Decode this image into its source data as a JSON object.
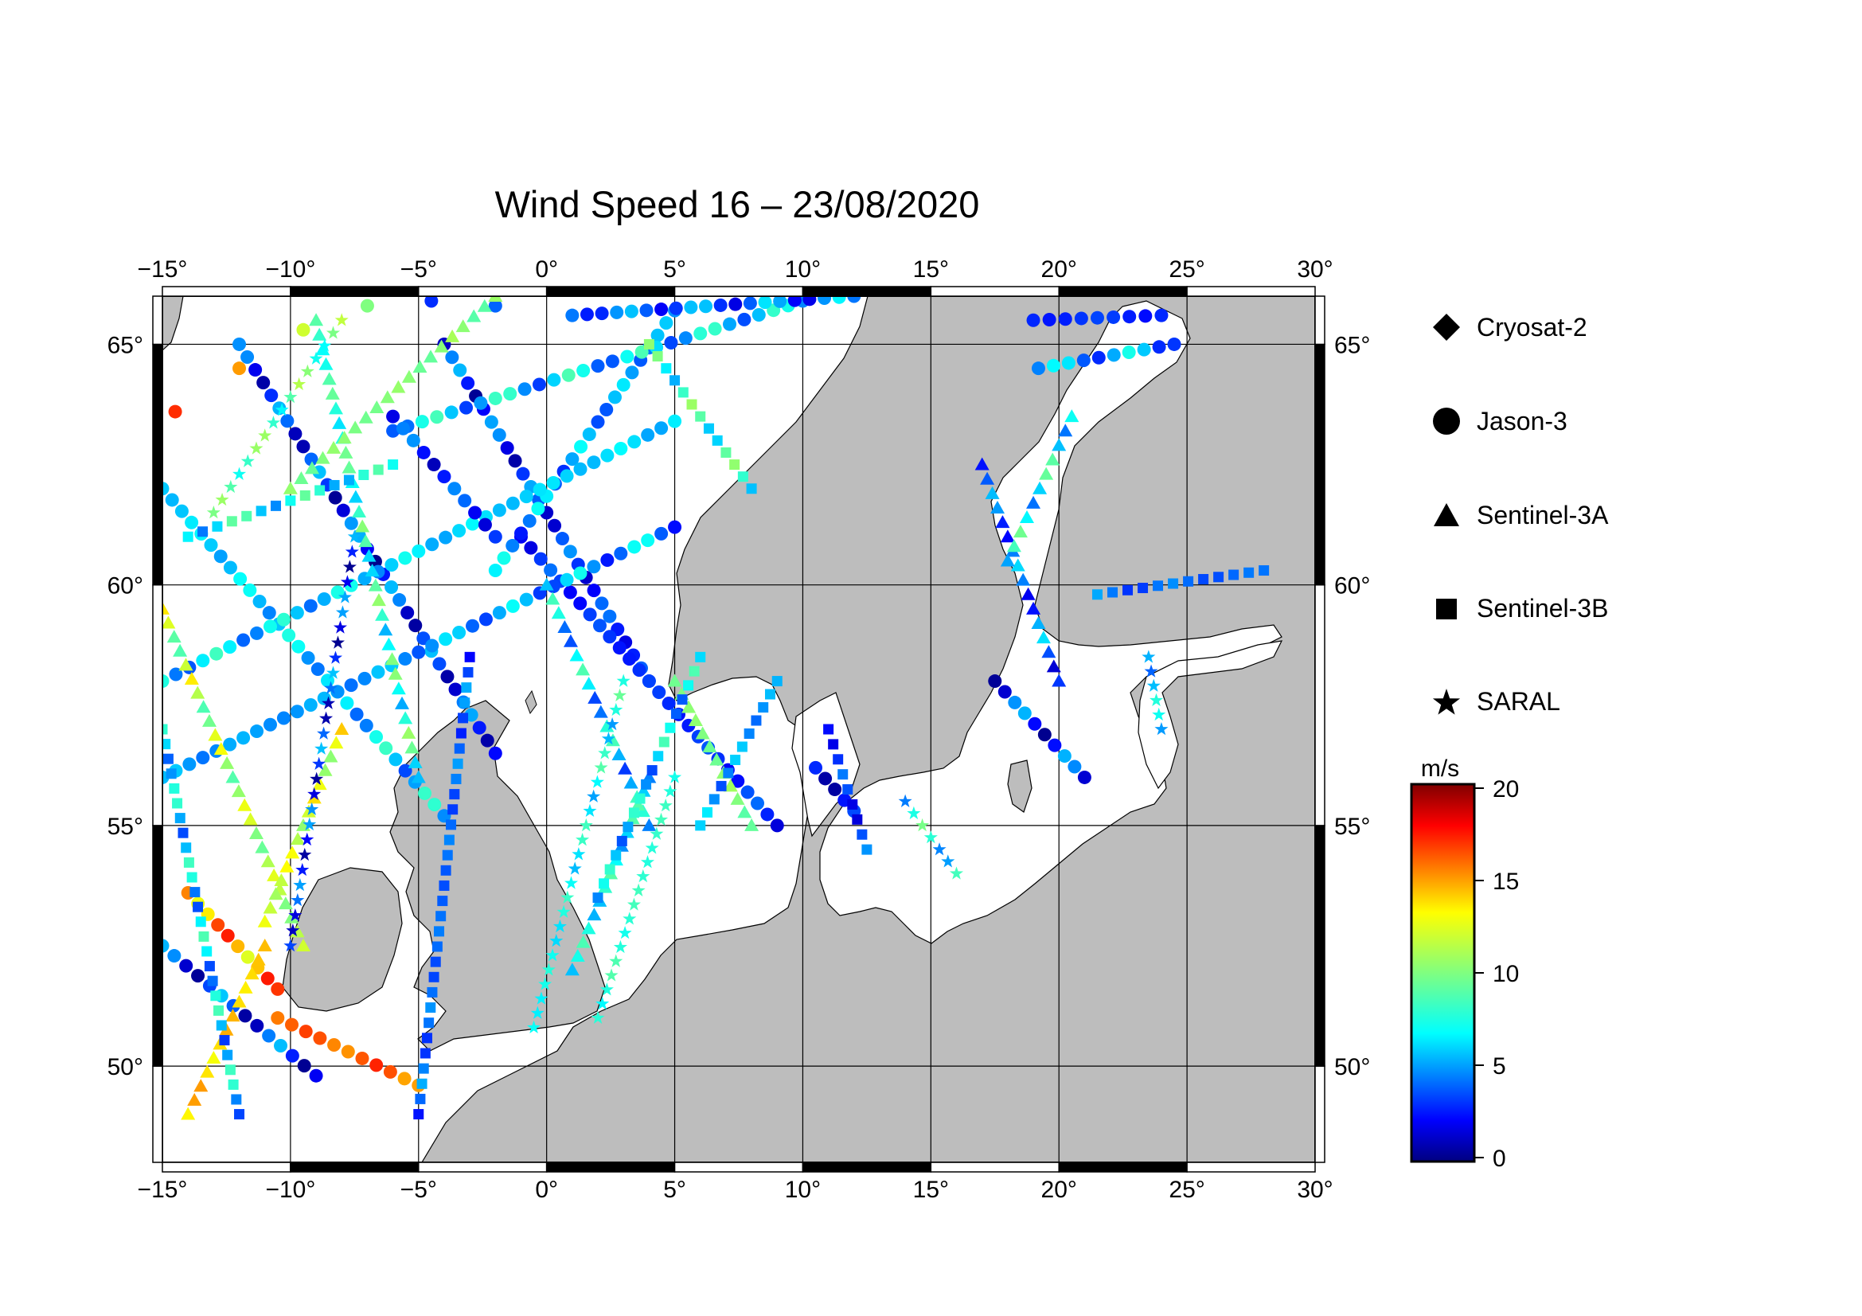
{
  "title": "Wind Speed 16 – 23/08/2020",
  "map": {
    "lon_range": [
      -15,
      30
    ],
    "lat_range": [
      48,
      66
    ],
    "lon_ticks": [
      {
        "value": -15,
        "label": "−15°"
      },
      {
        "value": -10,
        "label": "−10°"
      },
      {
        "value": -5,
        "label": "−5°"
      },
      {
        "value": 0,
        "label": "0°"
      },
      {
        "value": 5,
        "label": "5°"
      },
      {
        "value": 10,
        "label": "10°"
      },
      {
        "value": 15,
        "label": "15°"
      },
      {
        "value": 20,
        "label": "20°"
      },
      {
        "value": 25,
        "label": "25°"
      },
      {
        "value": 30,
        "label": "30°"
      }
    ],
    "lat_ticks": [
      {
        "value": 50,
        "label": "50°"
      },
      {
        "value": 55,
        "label": "55°"
      },
      {
        "value": 60,
        "label": "60°"
      },
      {
        "value": 65,
        "label": "65°"
      }
    ],
    "grid": true,
    "land_color": "#bdbdbd",
    "sea_color": "#ffffff"
  },
  "legend": {
    "position": "right",
    "items": [
      {
        "label": "Cryosat-2",
        "symbol": "diamond"
      },
      {
        "label": "Jason-3",
        "symbol": "circle"
      },
      {
        "label": "Sentinel-3A",
        "symbol": "triangle"
      },
      {
        "label": "Sentinel-3B",
        "symbol": "square"
      },
      {
        "label": "SARAL",
        "symbol": "star"
      }
    ]
  },
  "colorbar": {
    "unit": "m/s",
    "min": 0,
    "max": 20,
    "ticks": [
      {
        "value": 0,
        "label": "0"
      },
      {
        "value": 5,
        "label": "5"
      },
      {
        "value": 10,
        "label": "10"
      },
      {
        "value": 15,
        "label": "15"
      },
      {
        "value": 20,
        "label": "20"
      }
    ],
    "colormap": "jet"
  },
  "chart_data": {
    "type": "scatter",
    "title": "Wind Speed 16 – 23/08/2020",
    "xlabel": "",
    "ylabel": "",
    "xlim": [
      -15,
      30
    ],
    "ylim": [
      48,
      66
    ],
    "value_unit": "m/s",
    "tracks": [
      {
        "sat": "Jason-3",
        "points": [
          [
            -14.5,
            63.6,
            17
          ],
          [
            -12.0,
            64.5,
            15
          ],
          [
            -9.5,
            65.3,
            12
          ],
          [
            -7.0,
            65.8,
            10
          ],
          [
            -4.5,
            65.9,
            3
          ],
          [
            -2.0,
            65.8,
            4
          ]
        ],
        "values_mode": "explicit"
      },
      {
        "sat": "Jason-3",
        "start": [
          -15,
          62.0
        ],
        "end": [
          -4,
          55.2
        ],
        "value": 6
      },
      {
        "sat": "Jason-3",
        "start": [
          -12,
          65.0
        ],
        "end": [
          -2,
          56.5
        ],
        "value": 3
      },
      {
        "sat": "Jason-3",
        "start": [
          -4,
          65.0
        ],
        "end": [
          4,
          58.0
        ],
        "value": 3
      },
      {
        "sat": "Jason-3",
        "start": [
          -1,
          61.0
        ],
        "end": [
          9,
          55.0
        ],
        "value": 3
      },
      {
        "sat": "Jason-3",
        "start": [
          5,
          65.7
        ],
        "end": [
          -2,
          60.3
        ],
        "value": 5
      },
      {
        "sat": "Jason-3",
        "start": [
          -6,
          63.2
        ],
        "end": [
          10,
          65.9
        ],
        "value": 6
      },
      {
        "sat": "Jason-3",
        "start": [
          -15,
          58.0
        ],
        "end": [
          5,
          63.4
        ],
        "value": 6
      },
      {
        "sat": "Jason-3",
        "start": [
          -15,
          56.0
        ],
        "end": [
          5,
          61.2
        ],
        "value": 5
      },
      {
        "sat": "Jason-3",
        "start": [
          1,
          65.6
        ],
        "end": [
          12,
          66.0
        ],
        "value": 4
      },
      {
        "sat": "Jason-3",
        "start": [
          -15,
          52.5
        ],
        "end": [
          -9,
          49.8
        ],
        "value": 3
      },
      {
        "sat": "Jason-3",
        "start": [
          -6,
          63.5
        ],
        "end": [
          -2,
          61.0
        ],
        "value": 3
      },
      {
        "sat": "Jason-3",
        "start": [
          19,
          65.5
        ],
        "end": [
          24,
          65.6
        ],
        "value": 3
      },
      {
        "sat": "Jason-3",
        "start": [
          19.2,
          64.5
        ],
        "end": [
          24.5,
          65.0
        ],
        "value": 5
      },
      {
        "sat": "Jason-3",
        "start": [
          17.5,
          58.0
        ],
        "end": [
          21,
          56.0
        ],
        "value": 3
      },
      {
        "sat": "Jason-3",
        "start": [
          10.5,
          56.2
        ],
        "end": [
          12,
          55.3
        ],
        "value": 2
      },
      {
        "sat": "Jason-3",
        "start": [
          -10.5,
          51.0
        ],
        "end": [
          -5,
          49.6
        ],
        "value": 16
      },
      {
        "sat": "Jason-3",
        "start": [
          -14,
          53.6
        ],
        "end": [
          -10.5,
          51.6
        ],
        "value": 15
      },
      {
        "sat": "Sentinel-3A",
        "start": [
          -15,
          59.5
        ],
        "end": [
          -9.5,
          52.5
        ],
        "value": 11
      },
      {
        "sat": "Sentinel-3A",
        "start": [
          -14,
          49.0
        ],
        "end": [
          -11,
          52.5
        ],
        "value": 14
      },
      {
        "sat": "Sentinel-3A",
        "start": [
          -9,
          65.5
        ],
        "end": [
          -5,
          56.0
        ],
        "value": 8
      },
      {
        "sat": "Sentinel-3A",
        "start": [
          0,
          60.0
        ],
        "end": [
          4,
          55.0
        ],
        "value": 6
      },
      {
        "sat": "Sentinel-3A",
        "start": [
          4,
          56.0
        ],
        "end": [
          1,
          52.0
        ],
        "value": 7
      },
      {
        "sat": "Sentinel-3A",
        "start": [
          -10,
          62.0
        ],
        "end": [
          -2,
          66.0
        ],
        "value": 10
      },
      {
        "sat": "Sentinel-3A",
        "start": [
          17,
          62.5
        ],
        "end": [
          20,
          58.0
        ],
        "value": 4
      },
      {
        "sat": "Sentinel-3A",
        "start": [
          20.5,
          63.5
        ],
        "end": [
          18.0,
          60.5
        ],
        "value": 7
      },
      {
        "sat": "Sentinel-3A",
        "start": [
          -8,
          57.0
        ],
        "end": [
          -11,
          53.0
        ],
        "value": 12
      },
      {
        "sat": "Sentinel-3A",
        "start": [
          5,
          58.0
        ],
        "end": [
          8,
          55.0
        ],
        "value": 10
      },
      {
        "sat": "Sentinel-3B",
        "start": [
          -15,
          57.0
        ],
        "end": [
          -12,
          49.0
        ],
        "value": 6
      },
      {
        "sat": "Sentinel-3B",
        "start": [
          6,
          58.5
        ],
        "end": [
          2,
          53.5
        ],
        "value": 6
      },
      {
        "sat": "Sentinel-3B",
        "start": [
          -3,
          58.5
        ],
        "end": [
          -5,
          49.0
        ],
        "value": 4
      },
      {
        "sat": "Sentinel-3B",
        "start": [
          9,
          58.0
        ],
        "end": [
          6,
          55.0
        ],
        "value": 5
      },
      {
        "sat": "Sentinel-3B",
        "start": [
          8,
          62.0
        ],
        "end": [
          4,
          65.0
        ],
        "value": 8
      },
      {
        "sat": "Sentinel-3B",
        "start": [
          -14,
          61.0
        ],
        "end": [
          -6,
          62.5
        ],
        "value": 7
      },
      {
        "sat": "Sentinel-3B",
        "start": [
          21.5,
          59.8
        ],
        "end": [
          28,
          60.3
        ],
        "value": 4
      },
      {
        "sat": "Sentinel-3B",
        "start": [
          11,
          57.0
        ],
        "end": [
          12.5,
          54.5
        ],
        "value": 3
      },
      {
        "sat": "SARAL",
        "start": [
          -7.5,
          61.0
        ],
        "end": [
          -10,
          52.5
        ],
        "value": 3
      },
      {
        "sat": "SARAL",
        "start": [
          3,
          58.0
        ],
        "end": [
          -0.5,
          50.8
        ],
        "value": 7
      },
      {
        "sat": "SARAL",
        "start": [
          5,
          56.0
        ],
        "end": [
          2,
          51.0
        ],
        "value": 8
      },
      {
        "sat": "SARAL",
        "start": [
          -13,
          61.5
        ],
        "end": [
          -8,
          65.5
        ],
        "value": 9
      },
      {
        "sat": "SARAL",
        "start": [
          14,
          55.5
        ],
        "end": [
          16,
          54.0
        ],
        "value": 7
      },
      {
        "sat": "SARAL",
        "start": [
          23.5,
          58.5
        ],
        "end": [
          24,
          57.0
        ],
        "value": 6
      }
    ]
  }
}
